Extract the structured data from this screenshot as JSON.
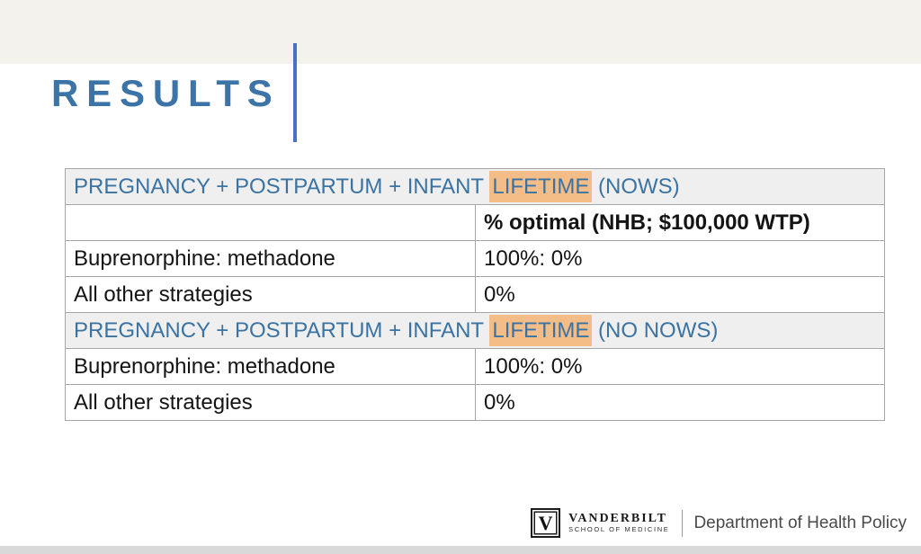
{
  "slide": {
    "title": "RESULTS"
  },
  "table": {
    "sections": [
      {
        "header": {
          "prefix": "PREGNANCY + POSTPARTUM + INFANT",
          "highlight": "LIFETIME",
          "suffix": "(NOWS)"
        },
        "column_header": "% optimal (NHB; $100,000 WTP)",
        "rows": [
          {
            "label": "Buprenorphine: methadone",
            "value": "100%: 0%"
          },
          {
            "label": "All other strategies",
            "value": "0%"
          }
        ]
      },
      {
        "header": {
          "prefix": "PREGNANCY + POSTPARTUM + INFANT",
          "highlight": "LIFETIME",
          "suffix": "(NO NOWS)"
        },
        "rows": [
          {
            "label": "Buprenorphine: methadone",
            "value": "100%: 0%"
          },
          {
            "label": "All other strategies",
            "value": "0%"
          }
        ]
      }
    ]
  },
  "footer": {
    "logo_letter": "V",
    "logo_name": "VANDERBILT",
    "logo_subtext": "SCHOOL OF MEDICINE",
    "department": "Department of Health Policy"
  },
  "colors": {
    "accent_blue": "#3d74a8",
    "rule_blue": "#4a72c4",
    "highlight_orange": "#f4bd88",
    "topbar_beige": "#f3f2ec",
    "bottombar_gray": "#d9d9d9",
    "table_border_gray": "#a6a6a6",
    "section_header_bg": "#f0efef"
  }
}
